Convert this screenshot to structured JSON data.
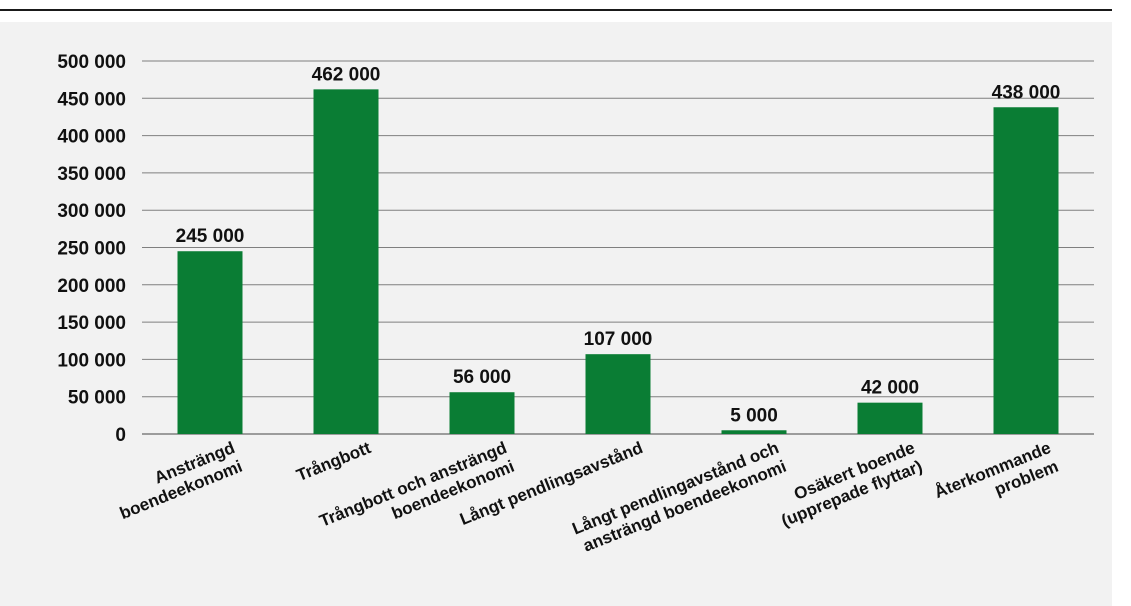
{
  "chart_data": {
    "type": "bar",
    "title": "",
    "xlabel": "",
    "ylabel": "",
    "categories": [
      [
        "Ansträngd",
        "boendeekonomi"
      ],
      [
        "Trångbott"
      ],
      [
        "Trångbott och ansträngd",
        "boendeekonomi"
      ],
      [
        "Långt pendlingsavstånd"
      ],
      [
        "Långt pendlingavstånd och",
        "ansträngd boendeekonomi"
      ],
      [
        "Osäkert boende",
        "(upprepade flyttar)"
      ],
      [
        "Återkommande",
        "problem"
      ]
    ],
    "values": [
      245000,
      462000,
      56000,
      107000,
      5000,
      42000,
      438000
    ],
    "data_labels": [
      "245 000",
      "462 000",
      "56 000",
      "107 000",
      "5 000",
      "42 000",
      "438 000"
    ],
    "ylim": [
      0,
      500000
    ],
    "yticks": [
      0,
      50000,
      100000,
      150000,
      200000,
      250000,
      300000,
      350000,
      400000,
      450000,
      500000
    ],
    "ytick_labels": [
      "0",
      "50 000",
      "100 000",
      "150 000",
      "200 000",
      "250 000",
      "300 000",
      "350 000",
      "400 000",
      "450 000",
      "500 000"
    ],
    "grid": true,
    "bar_color": "#0a7d34",
    "grid_color": "#7f7f7f"
  }
}
